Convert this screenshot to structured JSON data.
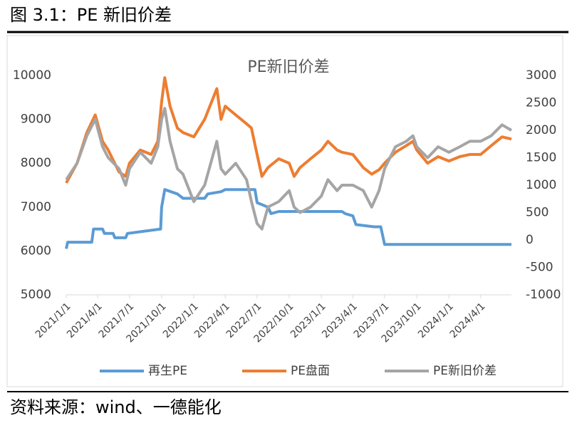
{
  "header": {
    "title": "图 3.1：PE 新旧价差"
  },
  "footer": {
    "source": "资料来源：wind、一德能化"
  },
  "chart_data": {
    "type": "line",
    "title": "PE新旧价差",
    "xlim": [
      "2021/1/1",
      "2024/6/28"
    ],
    "xticks": [
      "2021/1/1",
      "2021/4/1",
      "2021/7/1",
      "2021/10/1",
      "2022/1/1",
      "2022/4/1",
      "2022/7/1",
      "2022/10/1",
      "2023/1/1",
      "2023/4/1",
      "2023/7/1",
      "2023/10/1",
      "2024/1/1",
      "2024/4/1"
    ],
    "ylim": [
      5000,
      10000
    ],
    "yticks": [
      5000,
      6000,
      7000,
      8000,
      9000,
      10000
    ],
    "y2lim": [
      -1000,
      3000
    ],
    "y2ticks": [
      -1000,
      -500,
      0,
      500,
      1000,
      1500,
      2000,
      2500,
      3000
    ],
    "grid": false,
    "legend": "bottom",
    "series": [
      {
        "name": "再生PE",
        "color": "#5b9bd5",
        "x": [
          "2021/1/1",
          "2021/1/5",
          "2021/3/15",
          "2021/3/20",
          "2021/4/15",
          "2021/4/20",
          "2021/5/15",
          "2021/5/20",
          "2021/6/20",
          "2021/6/25",
          "2021/9/28",
          "2021/10/1",
          "2021/10/10",
          "2021/11/15",
          "2021/12/1",
          "2022/2/1",
          "2022/2/10",
          "2022/3/20",
          "2022/4/1",
          "2022/6/25",
          "2022/7/1",
          "2022/8/1",
          "2022/8/10",
          "2022/9/1",
          "2023/3/1",
          "2023/3/10",
          "2023/4/1",
          "2023/4/10",
          "2023/6/1",
          "2023/6/20",
          "2023/7/1",
          "2024/6/28"
        ],
        "values": [
          6050,
          6200,
          6200,
          6500,
          6500,
          6400,
          6400,
          6300,
          6300,
          6400,
          6500,
          7000,
          7400,
          7300,
          7200,
          7200,
          7300,
          7350,
          7400,
          7400,
          7100,
          7000,
          6850,
          6900,
          6900,
          6850,
          6800,
          6600,
          6550,
          6550,
          6150,
          6150
        ]
      },
      {
        "name": "PE盘面",
        "color": "#ed7d31",
        "x": [
          "2021/1/1",
          "2021/2/1",
          "2021/3/1",
          "2021/3/25",
          "2021/4/15",
          "2021/5/1",
          "2021/6/1",
          "2021/6/20",
          "2021/7/1",
          "2021/8/1",
          "2021/9/1",
          "2021/9/20",
          "2021/10/1",
          "2021/10/10",
          "2021/10/25",
          "2021/11/15",
          "2021/12/1",
          "2022/1/1",
          "2022/2/1",
          "2022/3/8",
          "2022/3/20",
          "2022/4/1",
          "2022/5/1",
          "2022/6/1",
          "2022/6/15",
          "2022/7/1",
          "2022/7/15",
          "2022/8/1",
          "2022/9/1",
          "2022/10/1",
          "2022/10/15",
          "2022/11/1",
          "2022/12/1",
          "2023/1/1",
          "2023/1/20",
          "2023/2/15",
          "2023/3/1",
          "2023/4/1",
          "2023/5/1",
          "2023/5/25",
          "2023/6/15",
          "2023/7/1",
          "2023/8/1",
          "2023/9/1",
          "2023/9/20",
          "2023/10/1",
          "2023/11/1",
          "2023/12/1",
          "2024/1/1",
          "2024/2/1",
          "2024/3/1",
          "2024/4/1",
          "2024/5/1",
          "2024/6/1",
          "2024/6/28"
        ],
        "values": [
          7550,
          8000,
          8700,
          9100,
          8500,
          8300,
          7800,
          7700,
          8000,
          8300,
          8200,
          8500,
          9400,
          9950,
          9300,
          8800,
          8700,
          8600,
          9000,
          9700,
          9000,
          9300,
          9100,
          8900,
          8800,
          8200,
          7700,
          7900,
          8100,
          8000,
          7700,
          7900,
          8100,
          8300,
          8500,
          8300,
          8250,
          8200,
          7900,
          7750,
          7850,
          8000,
          8250,
          8400,
          8500,
          8300,
          8000,
          8150,
          8050,
          8150,
          8200,
          8200,
          8400,
          8600,
          8550
        ]
      },
      {
        "name": "PE新旧价差",
        "color": "#a5a5a5",
        "axis": "y2",
        "x": [
          "2021/1/1",
          "2021/2/1",
          "2021/3/1",
          "2021/3/25",
          "2021/4/15",
          "2021/5/1",
          "2021/6/1",
          "2021/6/20",
          "2021/7/1",
          "2021/8/1",
          "2021/9/1",
          "2021/9/20",
          "2021/10/1",
          "2021/10/10",
          "2021/10/25",
          "2021/11/15",
          "2021/12/1",
          "2022/1/1",
          "2022/2/1",
          "2022/3/8",
          "2022/3/20",
          "2022/4/1",
          "2022/5/1",
          "2022/6/1",
          "2022/6/15",
          "2022/7/1",
          "2022/7/15",
          "2022/8/1",
          "2022/9/1",
          "2022/10/1",
          "2022/10/15",
          "2022/11/1",
          "2022/12/1",
          "2023/1/1",
          "2023/1/20",
          "2023/2/15",
          "2023/3/1",
          "2023/4/1",
          "2023/5/1",
          "2023/5/25",
          "2023/6/15",
          "2023/7/1",
          "2023/8/1",
          "2023/9/1",
          "2023/9/20",
          "2023/10/1",
          "2023/11/1",
          "2023/12/1",
          "2024/1/1",
          "2024/2/1",
          "2024/3/1",
          "2024/4/1",
          "2024/5/1",
          "2024/6/1",
          "2024/6/28"
        ],
        "values": [
          1100,
          1400,
          1900,
          2200,
          1700,
          1500,
          1300,
          1000,
          1300,
          1600,
          1400,
          1700,
          2200,
          2400,
          1800,
          1300,
          1200,
          700,
          1000,
          1800,
          1300,
          1200,
          1400,
          1100,
          700,
          300,
          200,
          600,
          700,
          900,
          600,
          500,
          600,
          800,
          1100,
          900,
          1000,
          1000,
          900,
          600,
          900,
          1300,
          1700,
          1800,
          1900,
          1700,
          1500,
          1700,
          1600,
          1700,
          1800,
          1800,
          1900,
          2100,
          2000
        ]
      }
    ]
  }
}
